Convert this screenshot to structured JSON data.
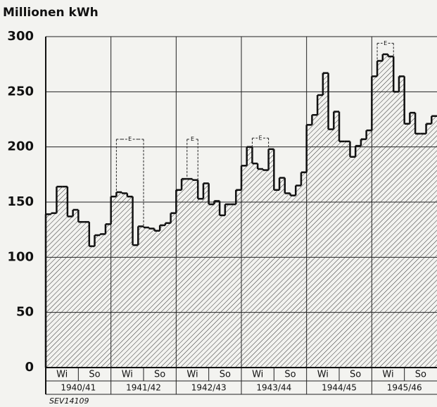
{
  "chart_data": {
    "type": "step",
    "y_axis_label": "Millionen kWh",
    "footnote": "SEV14109",
    "values": [
      139,
      140,
      164,
      164,
      137,
      143,
      132,
      132,
      110,
      120,
      121,
      130,
      155,
      159,
      158,
      155,
      111,
      128,
      127,
      126,
      124,
      129,
      131,
      140,
      161,
      171,
      171,
      170,
      153,
      167,
      148,
      151,
      138,
      148,
      148,
      161,
      183,
      200,
      185,
      180,
      179,
      198,
      161,
      172,
      158,
      156,
      165,
      177,
      220,
      229,
      247,
      267,
      216,
      232,
      205,
      205,
      191,
      201,
      207,
      215,
      264,
      278,
      284,
      282,
      250,
      264,
      221,
      231,
      212,
      212,
      221,
      228
    ],
    "e_label": "E",
    "e_values": [
      null,
      null,
      null,
      null,
      null,
      null,
      null,
      null,
      null,
      null,
      null,
      null,
      null,
      207,
      207,
      207,
      207,
      207,
      null,
      null,
      null,
      null,
      null,
      null,
      null,
      null,
      207,
      207,
      null,
      null,
      null,
      null,
      null,
      null,
      null,
      null,
      null,
      null,
      208,
      208,
      208,
      null,
      null,
      null,
      null,
      null,
      null,
      null,
      null,
      null,
      null,
      null,
      null,
      null,
      null,
      null,
      null,
      null,
      null,
      null,
      null,
      294,
      294,
      294,
      null,
      null,
      null,
      null,
      null,
      null,
      null,
      null
    ],
    "season_labels": [
      "Wi",
      "So",
      "Wi",
      "So",
      "Wi",
      "So",
      "Wi",
      "So",
      "Wi",
      "So",
      "Wi",
      "So"
    ],
    "years": [
      "1940/41",
      "1941/42",
      "1942/43",
      "1943/44",
      "1944/45",
      "1945/46"
    ],
    "color": "#111111",
    "ylim": [
      0,
      300
    ],
    "yticks": [
      0,
      50,
      100,
      150,
      200,
      250,
      300
    ],
    "grid": true
  }
}
